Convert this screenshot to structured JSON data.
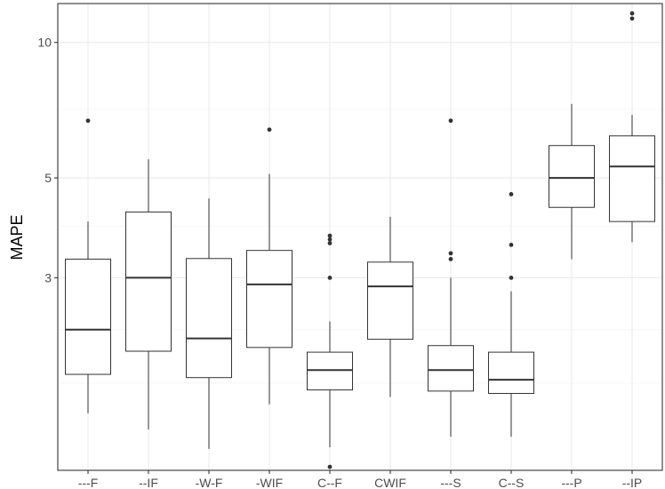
{
  "chart_data": {
    "type": "box",
    "title": "",
    "xlabel": "",
    "ylabel": "MAPE",
    "y_scale": "log10",
    "ylim": [
      1.12,
      12.2
    ],
    "y_ticks": [
      {
        "value": 3,
        "label": "3"
      },
      {
        "value": 5,
        "label": "5"
      },
      {
        "value": 10,
        "label": "10"
      }
    ],
    "y_minor_gridlines": [
      1.75,
      2.3,
      3.9,
      7.1
    ],
    "grid": true,
    "legend": "none",
    "categories": [
      "---F",
      "--IF",
      "-W-F",
      "-WIF",
      "C--F",
      "CWIF",
      "---S",
      "C--S",
      "---P",
      "--IP"
    ],
    "boxes": [
      {
        "label": "---F",
        "whisker_low": 1.5,
        "q1": 1.83,
        "median": 2.3,
        "q3": 3.3,
        "whisker_high": 4.0,
        "outliers": [
          6.7
        ]
      },
      {
        "label": "--IF",
        "whisker_low": 1.38,
        "q1": 2.06,
        "median": 3.0,
        "q3": 4.2,
        "whisker_high": 5.5,
        "outliers": []
      },
      {
        "label": "-W-F",
        "whisker_low": 1.25,
        "q1": 1.8,
        "median": 2.2,
        "q3": 3.31,
        "whisker_high": 4.5,
        "outliers": []
      },
      {
        "label": "-WIF",
        "whisker_low": 1.57,
        "q1": 2.1,
        "median": 2.9,
        "q3": 3.45,
        "whisker_high": 5.1,
        "outliers": [
          6.4
        ]
      },
      {
        "label": "C--F",
        "whisker_low": 1.26,
        "q1": 1.69,
        "median": 1.87,
        "q3": 2.05,
        "whisker_high": 2.4,
        "outliers": [
          1.14,
          3.0,
          3.58,
          3.65,
          3.72
        ]
      },
      {
        "label": "CWIF",
        "whisker_low": 1.63,
        "q1": 2.19,
        "median": 2.87,
        "q3": 3.25,
        "whisker_high": 4.1,
        "outliers": []
      },
      {
        "label": "---S",
        "whisker_low": 1.33,
        "q1": 1.68,
        "median": 1.87,
        "q3": 2.12,
        "whisker_high": 3.0,
        "outliers": [
          3.3,
          3.4,
          6.7
        ]
      },
      {
        "label": "C--S",
        "whisker_low": 1.33,
        "q1": 1.66,
        "median": 1.78,
        "q3": 2.05,
        "whisker_high": 2.8,
        "outliers": [
          3.0,
          3.55,
          4.6
        ]
      },
      {
        "label": "---P",
        "whisker_low": 3.3,
        "q1": 4.3,
        "median": 5.0,
        "q3": 5.9,
        "whisker_high": 7.3,
        "outliers": []
      },
      {
        "label": "--IP",
        "whisker_low": 3.6,
        "q1": 4.0,
        "median": 5.3,
        "q3": 6.2,
        "whisker_high": 6.9,
        "outliers": [
          11.3,
          11.6
        ]
      }
    ]
  }
}
